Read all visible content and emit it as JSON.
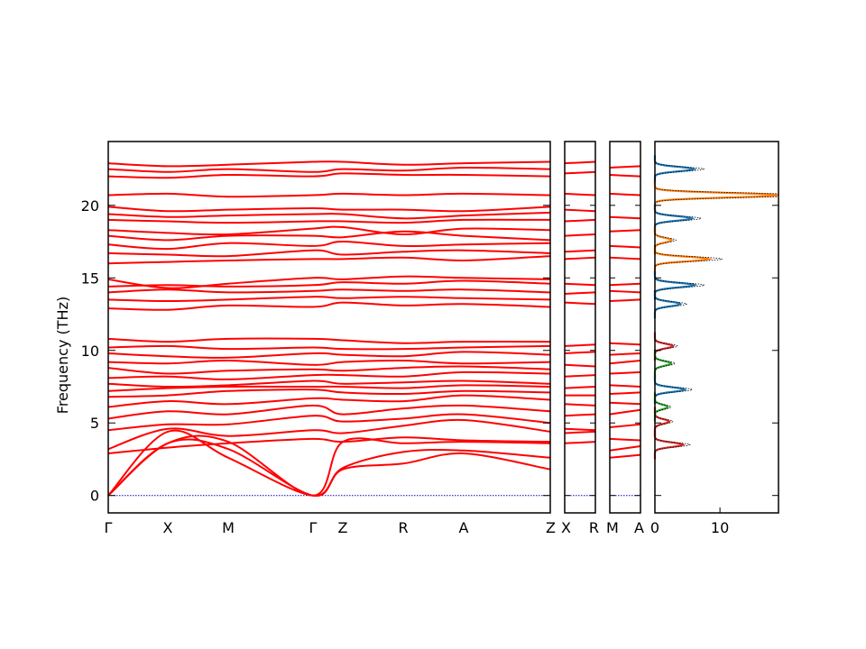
{
  "chart_data": {
    "type": "line",
    "ylabel": "Frequency (THz)",
    "ylim": [
      -1.2,
      24.4
    ],
    "y_ticks": [
      "0",
      "5",
      "10",
      "15",
      "20"
    ],
    "y_tick_values": [
      0,
      5,
      10,
      15,
      20
    ],
    "segments": [
      {
        "labels": [
          "Γ",
          "X",
          "M",
          "Γ",
          "Z",
          "R",
          "A",
          "Z"
        ],
        "path": "Γ-X-M-Γ-Z-R-A-Z"
      },
      {
        "labels": [
          "X",
          "R"
        ],
        "path": "X-R"
      },
      {
        "labels": [
          "M",
          "A"
        ],
        "path": "M-A"
      }
    ],
    "band_color": "#ff0000",
    "zero_line_color": "#0000cc",
    "bands_segment1": [
      [
        0.0,
        3.6,
        3.2,
        0.0,
        1.8,
        2.2,
        2.9,
        1.8
      ],
      [
        0.0,
        4.4,
        2.6,
        0.0,
        1.9,
        3.0,
        3.1,
        2.6
      ],
      [
        0.0,
        3.6,
        3.7,
        0.0,
        3.7,
        3.6,
        3.7,
        3.6
      ],
      [
        2.9,
        3.3,
        3.6,
        3.9,
        3.7,
        4.0,
        3.8,
        3.7
      ],
      [
        3.2,
        4.6,
        4.1,
        4.5,
        4.3,
        4.8,
        5.2,
        4.4
      ],
      [
        4.5,
        4.9,
        4.9,
        5.5,
        5.1,
        5.3,
        5.6,
        5.0
      ],
      [
        5.3,
        5.8,
        5.6,
        6.2,
        5.6,
        6.0,
        6.2,
        5.8
      ],
      [
        6.1,
        6.5,
        6.3,
        6.7,
        6.6,
        6.5,
        6.9,
        6.6
      ],
      [
        6.8,
        6.9,
        7.2,
        7.3,
        7.1,
        7.0,
        7.2,
        7.1
      ],
      [
        7.2,
        7.4,
        7.5,
        7.5,
        7.5,
        7.4,
        7.6,
        7.5
      ],
      [
        7.7,
        7.5,
        7.6,
        7.9,
        7.7,
        7.8,
        7.9,
        7.7
      ],
      [
        8.1,
        8.2,
        8.0,
        8.3,
        8.3,
        8.2,
        8.5,
        8.4
      ],
      [
        8.8,
        8.4,
        8.6,
        8.7,
        8.6,
        8.8,
        8.9,
        8.7
      ],
      [
        9.2,
        9.1,
        9.3,
        9.0,
        9.2,
        9.3,
        9.1,
        9.2
      ],
      [
        9.8,
        9.6,
        9.5,
        9.8,
        9.7,
        9.6,
        9.9,
        9.7
      ],
      [
        10.2,
        10.3,
        10.1,
        10.2,
        10.1,
        10.1,
        10.2,
        10.3
      ],
      [
        10.8,
        10.6,
        10.8,
        10.8,
        10.7,
        10.5,
        10.6,
        10.6
      ],
      [
        12.9,
        12.8,
        13.1,
        13.0,
        13.3,
        13.1,
        13.2,
        13.0
      ],
      [
        13.5,
        13.4,
        13.5,
        13.7,
        13.6,
        13.7,
        13.6,
        13.5
      ],
      [
        14.0,
        14.2,
        14.0,
        14.1,
        14.2,
        14.1,
        14.2,
        14.0
      ],
      [
        14.4,
        14.5,
        14.4,
        14.5,
        14.7,
        14.6,
        14.8,
        14.6
      ],
      [
        14.9,
        14.3,
        14.6,
        15.0,
        14.9,
        15.1,
        15.0,
        14.9
      ],
      [
        16.0,
        16.1,
        16.2,
        16.3,
        16.3,
        16.4,
        16.2,
        16.5
      ],
      [
        16.7,
        16.6,
        16.5,
        16.9,
        16.6,
        16.8,
        16.9,
        16.7
      ],
      [
        17.3,
        17.0,
        17.4,
        17.2,
        17.5,
        17.2,
        17.3,
        17.4
      ],
      [
        17.9,
        17.6,
        17.9,
        17.9,
        17.8,
        18.2,
        17.9,
        17.6
      ],
      [
        18.3,
        18.1,
        18.0,
        18.4,
        18.5,
        18.0,
        18.4,
        18.3
      ],
      [
        19.0,
        18.9,
        18.8,
        18.9,
        18.9,
        18.8,
        19.0,
        19.0
      ],
      [
        19.4,
        19.2,
        19.3,
        19.4,
        19.4,
        19.1,
        19.3,
        19.5
      ],
      [
        19.9,
        19.6,
        19.7,
        19.8,
        19.7,
        19.7,
        19.6,
        19.9
      ],
      [
        20.7,
        20.8,
        20.6,
        20.7,
        20.8,
        20.7,
        20.8,
        20.7
      ],
      [
        22.0,
        21.9,
        22.1,
        22.0,
        22.2,
        22.1,
        22.1,
        22.0
      ],
      [
        22.5,
        22.3,
        22.5,
        22.3,
        22.5,
        22.4,
        22.6,
        22.5
      ],
      [
        22.9,
        22.7,
        22.8,
        23.0,
        23.0,
        22.8,
        22.9,
        23.0
      ]
    ],
    "bands_segment2": [
      [
        3.6,
        3.7
      ],
      [
        4.3,
        4.4
      ],
      [
        4.6,
        4.5
      ],
      [
        5.5,
        5.6
      ],
      [
        6.3,
        6.2
      ],
      [
        6.9,
        6.9
      ],
      [
        7.4,
        7.5
      ],
      [
        8.2,
        8.3
      ],
      [
        9.0,
        8.9
      ],
      [
        9.8,
        9.9
      ],
      [
        10.3,
        10.4
      ],
      [
        13.3,
        13.2
      ],
      [
        13.9,
        14.0
      ],
      [
        14.6,
        14.5
      ],
      [
        16.3,
        16.4
      ],
      [
        16.8,
        16.9
      ],
      [
        17.9,
        18.0
      ],
      [
        18.9,
        19.0
      ],
      [
        19.7,
        19.6
      ],
      [
        20.8,
        20.7
      ],
      [
        22.2,
        22.3
      ],
      [
        22.9,
        23.0
      ]
    ],
    "bands_segment3": [
      [
        2.6,
        2.8
      ],
      [
        3.1,
        3.4
      ],
      [
        3.9,
        3.8
      ],
      [
        4.7,
        4.9
      ],
      [
        5.6,
        5.9
      ],
      [
        6.4,
        6.3
      ],
      [
        7.0,
        7.1
      ],
      [
        7.6,
        7.5
      ],
      [
        8.4,
        8.5
      ],
      [
        9.1,
        9.3
      ],
      [
        9.7,
        9.8
      ],
      [
        10.5,
        10.4
      ],
      [
        13.4,
        13.5
      ],
      [
        14.1,
        14.0
      ],
      [
        14.5,
        14.6
      ],
      [
        16.4,
        16.3
      ],
      [
        17.2,
        17.1
      ],
      [
        18.2,
        18.3
      ],
      [
        19.2,
        19.1
      ],
      [
        20.8,
        20.7
      ],
      [
        22.1,
        22.0
      ],
      [
        22.6,
        22.7
      ]
    ],
    "dos": {
      "x_ticks": [
        "0",
        "10"
      ],
      "x_tick_values": [
        0,
        10
      ],
      "xlim": [
        0,
        19
      ],
      "peaks": [
        {
          "freq": 22.5,
          "height": 6.0,
          "color": "#1f77b4"
        },
        {
          "freq": 20.7,
          "height": 18.9,
          "color": "#ff7f0e"
        },
        {
          "freq": 19.1,
          "height": 5.7,
          "color": "#1f77b4"
        },
        {
          "freq": 17.6,
          "height": 2.6,
          "color": "#ff7f0e"
        },
        {
          "freq": 16.3,
          "height": 8.3,
          "color": "#ff7f0e"
        },
        {
          "freq": 14.5,
          "height": 6.1,
          "color": "#1f77b4"
        },
        {
          "freq": 13.2,
          "height": 3.9,
          "color": "#1f77b4"
        },
        {
          "freq": 10.3,
          "height": 2.8,
          "color": "#d62728"
        },
        {
          "freq": 9.1,
          "height": 2.5,
          "color": "#2ca02c"
        },
        {
          "freq": 7.3,
          "height": 4.6,
          "color": "#1f77b4"
        },
        {
          "freq": 5.1,
          "height": 2.2,
          "color": "#d62728"
        },
        {
          "freq": 3.5,
          "height": 4.3,
          "color": "#d62728"
        },
        {
          "freq": 6.1,
          "height": 2.0,
          "color": "#2ca02c"
        }
      ]
    }
  }
}
